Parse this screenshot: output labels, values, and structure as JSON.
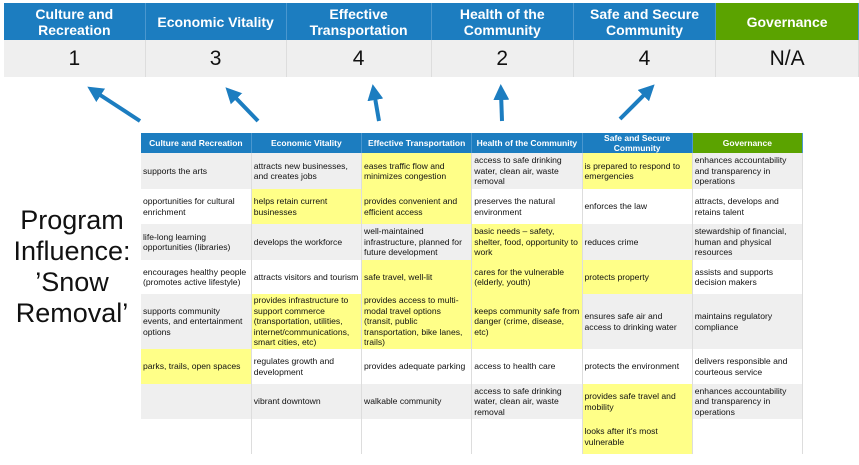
{
  "summary": {
    "headers": [
      "Culture and Recreation",
      "Economic Vitality",
      "Effective Transportation",
      "Health of the Community",
      "Safe and Secure Community",
      "Governance"
    ],
    "scores": [
      "1",
      "3",
      "4",
      "2",
      "4",
      "N/A"
    ]
  },
  "label": {
    "line1": "Program",
    "line2": "Influence:",
    "line3": "’Snow",
    "line4": "Removal’"
  },
  "colors": {
    "header_blue": "#1c7dc0",
    "governance_green": "#5ba300",
    "highlight": "#ffff88",
    "arrow": "#1c7dc0"
  },
  "grid": {
    "headers": [
      "Culture and Recreation",
      "Economic Vitality",
      "Effective Transportation",
      "Health of the Community",
      "Safe and Secure Community",
      "Governance"
    ],
    "rows": [
      [
        {
          "t": "supports the arts"
        },
        {
          "t": "attracts new businesses, and creates jobs"
        },
        {
          "t": "eases traffic flow and minimizes congestion",
          "h": true
        },
        {
          "t": "access to safe drinking water, clean air, waste removal"
        },
        {
          "t": "is prepared to respond to emergencies",
          "h": true
        },
        {
          "t": "enhances accountability and transparency in operations"
        }
      ],
      [
        {
          "t": "opportunities for cultural enrichment"
        },
        {
          "t": "helps retain current businesses",
          "h": true
        },
        {
          "t": "provides convenient and efficient access",
          "h": true
        },
        {
          "t": "preserves the natural environment"
        },
        {
          "t": "enforces the law"
        },
        {
          "t": "attracts, develops and retains talent"
        }
      ],
      [
        {
          "t": "life-long learning opportunities (libraries)"
        },
        {
          "t": "develops the workforce"
        },
        {
          "t": "well-maintained infrastructure, planned for future development"
        },
        {
          "t": "basic needs – safety, shelter, food, opportunity to work",
          "h": true
        },
        {
          "t": "reduces crime"
        },
        {
          "t": "stewardship of financial, human and physical resources"
        }
      ],
      [
        {
          "t": "encourages healthy people (promotes active lifestyle)"
        },
        {
          "t": "attracts visitors and tourism"
        },
        {
          "t": "safe travel, well-lit",
          "h": true
        },
        {
          "t": "cares for the vulnerable (elderly, youth)",
          "h": true
        },
        {
          "t": "protects property",
          "h": true
        },
        {
          "t": "assists and supports decision makers"
        }
      ],
      [
        {
          "t": "supports community events, and entertainment options"
        },
        {
          "t": "provides infrastructure to support commerce (transportation, utilities, internet/communications, smart cities, etc)",
          "h": true
        },
        {
          "t": "provides access to multi-modal travel options (transit, public transportation, bike lanes, trails)",
          "h": true
        },
        {
          "t": "keeps community safe from danger (crime, disease, etc)",
          "h": true
        },
        {
          "t": "ensures safe air and access to drinking water"
        },
        {
          "t": "maintains regulatory compliance"
        }
      ],
      [
        {
          "t": "parks, trails, open spaces",
          "h": true
        },
        {
          "t": "regulates growth and development"
        },
        {
          "t": "provides adequate parking"
        },
        {
          "t": "access to health care"
        },
        {
          "t": "protects the environment"
        },
        {
          "t": "delivers responsible and courteous service"
        }
      ],
      [
        {
          "t": ""
        },
        {
          "t": "vibrant downtown"
        },
        {
          "t": "walkable community"
        },
        {
          "t": "access to safe drinking water, clean air, waste removal"
        },
        {
          "t": "provides safe travel and mobility",
          "h": true
        },
        {
          "t": "enhances accountability and transparency in operations"
        }
      ],
      [
        {
          "t": ""
        },
        {
          "t": ""
        },
        {
          "t": ""
        },
        {
          "t": ""
        },
        {
          "t": "looks after it's most vulnerable",
          "h": true
        },
        {
          "t": ""
        }
      ]
    ]
  }
}
